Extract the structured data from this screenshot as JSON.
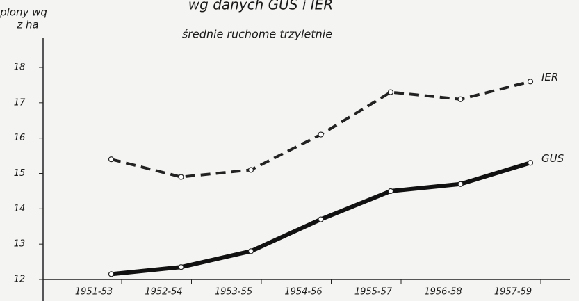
{
  "chart_data": {
    "type": "line",
    "title": "wg danych GUS i IER",
    "subtitle": "średnie ruchome trzyletnie",
    "y_label": [
      "plony wq",
      "z ha"
    ],
    "categories": [
      "1951-53",
      "1952-54",
      "1953-55",
      "1954-56",
      "1955-57",
      "1956-58",
      "1957-59"
    ],
    "series": [
      {
        "name": "IER",
        "color": "#222222",
        "dash": true,
        "values": [
          15.4,
          14.9,
          15.1,
          16.1,
          17.3,
          17.1,
          17.6
        ]
      },
      {
        "name": "GUS",
        "color": "#111111",
        "dash": false,
        "values": [
          12.15,
          12.35,
          12.8,
          13.7,
          14.5,
          14.7,
          15.3
        ]
      }
    ],
    "ylim": [
      12,
      18
    ],
    "yticks": [
      12,
      13,
      14,
      15,
      16,
      17,
      18
    ],
    "grid": false
  }
}
